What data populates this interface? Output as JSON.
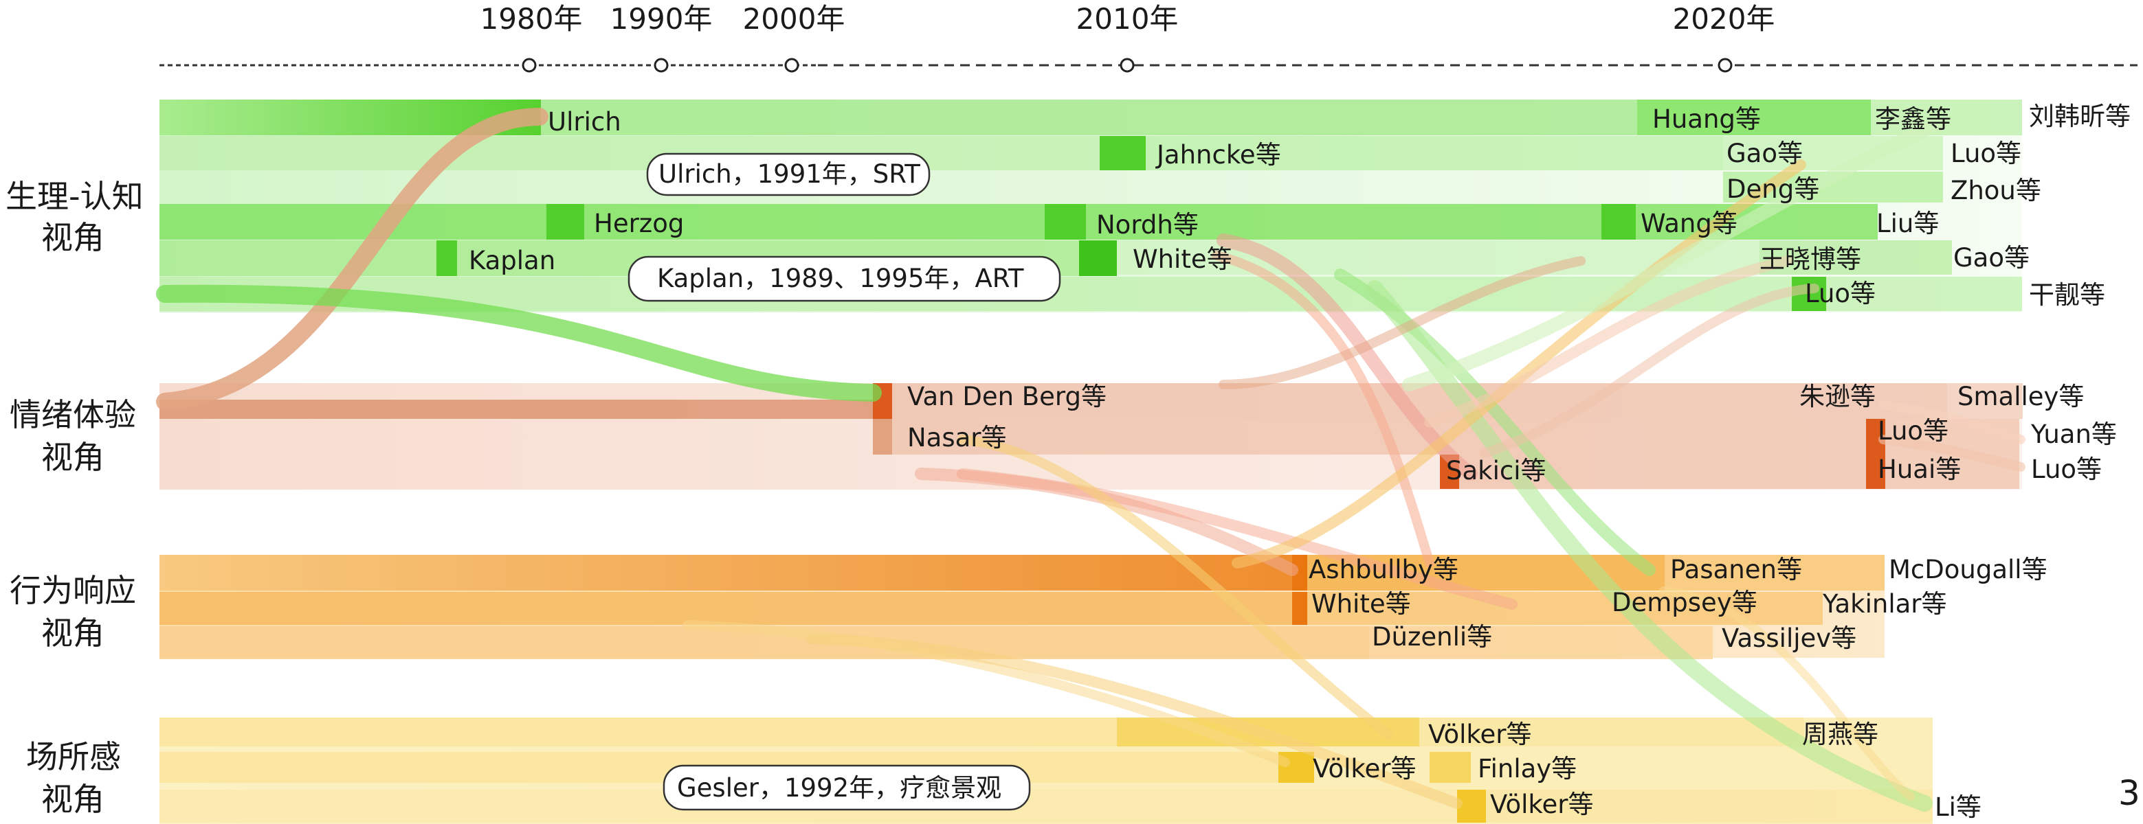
{
  "timeline": {
    "years": [
      "1980年",
      "1990年",
      "2000年",
      "2010年",
      "2020年"
    ]
  },
  "colors": {
    "physiological": "#6fdc4e",
    "emotional": "#e9a07e",
    "behavioral": "#f2a72c",
    "place": "#f6d450"
  },
  "perspectives": [
    {
      "key": "physiological",
      "lines": [
        "生理-认知",
        "视角"
      ],
      "authors": [
        "Ulrich",
        "Huang等",
        "李鑫等",
        "刘韩昕等",
        "Jahncke等",
        "Gao等",
        "Luo等",
        "Deng等",
        "Zhou等",
        "Herzog",
        "Nordh等",
        "Wang等",
        "Liu等",
        "Kaplan",
        "White等",
        "王晓博等",
        "Gao等",
        "Luo等",
        "干靓等"
      ]
    },
    {
      "key": "emotional",
      "lines": [
        "情绪体验",
        "视角"
      ],
      "authors": [
        "Van Den Berg等",
        "朱逊等",
        "Smalley等",
        "Nasar等",
        "Luo等",
        "Yuan等",
        "Sakici等",
        "Huai等",
        "Luo等"
      ]
    },
    {
      "key": "behavioral",
      "lines": [
        "行为响应",
        "视角"
      ],
      "authors": [
        "Ashbullby等",
        "Pasanen等",
        "McDougall等",
        "White等",
        "Dempsey等",
        "Yakinlar等",
        "Düzenli等",
        "Vassiljev等"
      ]
    },
    {
      "key": "place",
      "lines": [
        "场所感",
        "视角"
      ],
      "authors": [
        "Völker等",
        "周燕等",
        "Völker等",
        "Finlay等",
        "Völker等",
        "Li等"
      ]
    }
  ],
  "callouts": [
    "Ulrich，1991年，SRT",
    "Kaplan，1989、1995年，ART",
    "Gesler，1992年，疗愈景观"
  ],
  "page_number": "3"
}
